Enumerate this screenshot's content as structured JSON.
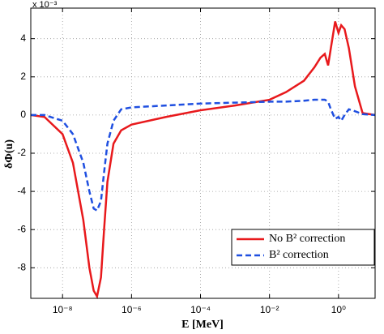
{
  "chart_data": {
    "type": "line",
    "x_label": "E [MeV]",
    "y_label": "δΦ(u)",
    "y_multiplier": "x 10⁻³",
    "x_scale": "log",
    "grid": true,
    "legend": "lower right",
    "xlim": [
      1.2e-09,
      11.5
    ],
    "ylim": [
      -9.6,
      5.6
    ],
    "xticks": [
      {
        "value": 1e-08,
        "label": "10⁻⁸"
      },
      {
        "value": 1e-06,
        "label": "10⁻⁶"
      },
      {
        "value": 0.0001,
        "label": "10⁻⁴"
      },
      {
        "value": 0.01,
        "label": "10⁻²"
      },
      {
        "value": 1,
        "label": "10⁰"
      }
    ],
    "yticks": [
      4,
      2,
      0,
      -2,
      -4,
      -6,
      -8
    ],
    "x": [
      1.2e-09,
      3e-09,
      1e-08,
      2e-08,
      4e-08,
      6e-08,
      8e-08,
      1e-07,
      1.3e-07,
      1.6e-07,
      2e-07,
      3e-07,
      5e-07,
      1e-06,
      1e-05,
      0.0001,
      0.001,
      0.01,
      0.03,
      0.1,
      0.2,
      0.3,
      0.4,
      0.5,
      0.6,
      0.8,
      1,
      1.2,
      1.5,
      2,
      3,
      5,
      11.5
    ],
    "series": [
      {
        "name": "No B² correction",
        "color": "#e8191c",
        "dash": "solid",
        "values": [
          0,
          -0.1,
          -1.0,
          -2.5,
          -5.5,
          -8,
          -9.2,
          -9.5,
          -8.5,
          -6,
          -3.5,
          -1.5,
          -0.8,
          -0.5,
          -0.1,
          0.25,
          0.5,
          0.8,
          1.2,
          1.8,
          2.5,
          3.0,
          3.2,
          2.6,
          3.5,
          4.9,
          4.3,
          4.7,
          4.5,
          3.5,
          1.5,
          0.1,
          0
        ]
      },
      {
        "name": "B² correction",
        "color": "#1f4fe0",
        "dash": "dashed",
        "values": [
          0,
          0,
          -0.3,
          -1.0,
          -2.5,
          -4.0,
          -4.9,
          -5.0,
          -4.5,
          -3,
          -1.5,
          -0.3,
          0.3,
          0.4,
          0.5,
          0.6,
          0.65,
          0.7,
          0.7,
          0.75,
          0.8,
          0.8,
          0.8,
          0.7,
          0.3,
          -0.2,
          -0.1,
          -0.3,
          0,
          0.3,
          0.2,
          0.05,
          0
        ]
      }
    ]
  }
}
